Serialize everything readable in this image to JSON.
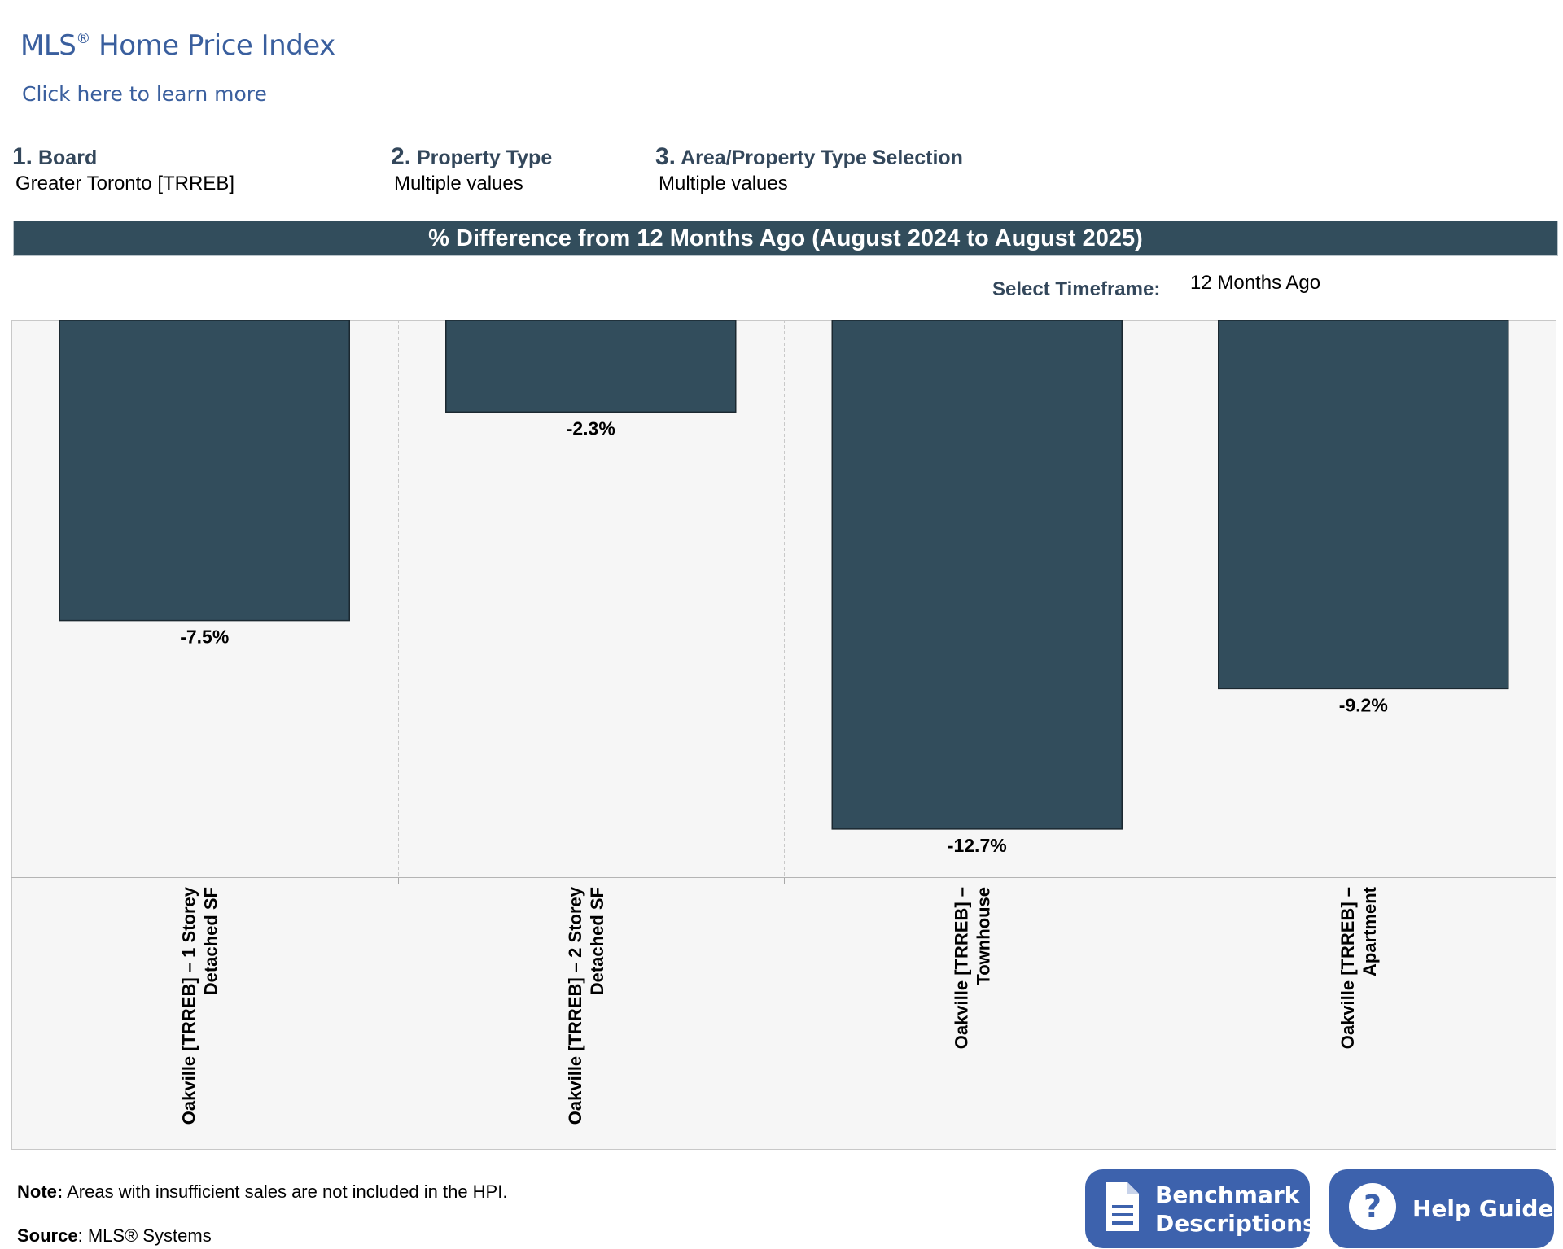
{
  "header": {
    "title": "MLS",
    "title_mark": "®",
    "title_rest": " Home Price Index",
    "learn_more": "Click here to learn more"
  },
  "filters": [
    {
      "num": "1.",
      "label": "Board",
      "value": "Greater Toronto [TRREB]"
    },
    {
      "num": "2.",
      "label": "Property Type",
      "value": "Multiple values"
    },
    {
      "num": "3.",
      "label": "Area/Property Type Selection",
      "value": "Multiple values"
    }
  ],
  "banner": "% Difference from 12 Months Ago (August 2024 to August 2025)",
  "timeframe": {
    "label": "Select Timeframe:",
    "value": "12 Months Ago"
  },
  "chart_data": {
    "type": "bar",
    "categories": [
      [
        "Oakville [TRREB] – 1 Storey",
        "Detached SF"
      ],
      [
        "Oakville [TRREB] – 2 Storey",
        "Detached SF"
      ],
      [
        "Oakville [TRREB] –",
        "Townhouse"
      ],
      [
        "Oakville [TRREB] –",
        "Apartment"
      ]
    ],
    "values": [
      -7.5,
      -2.3,
      -12.7,
      -9.2
    ],
    "value_labels": [
      "-7.5%",
      "-2.3%",
      "-12.7%",
      "-9.2%"
    ],
    "unit": "%",
    "ylim": [
      -13.9,
      0
    ],
    "bar_color": "#324d5c",
    "grid": "vertical dashed separators",
    "legend": "none"
  },
  "footer": {
    "note_label": "Note:",
    "note_text": " Areas with insufficient sales are not included in the HPI.",
    "source_label": "Source",
    "source_text": ": MLS® Systems"
  },
  "buttons": {
    "benchmark": {
      "line1": "Benchmark",
      "line2": "Descriptions",
      "icon": "document-icon"
    },
    "help": {
      "label": "Help Guide",
      "icon": "question-icon"
    }
  },
  "colors": {
    "brand_blue": "#3a5f9e",
    "header_dark": "#324d5c",
    "button_blue": "#3d62ad",
    "plot_bg": "#f6f6f6"
  }
}
